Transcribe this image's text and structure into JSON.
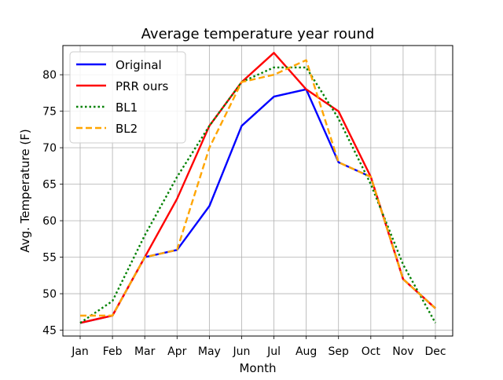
{
  "chart_data": {
    "type": "line",
    "title": "Average temperature year round",
    "xlabel": "Month",
    "ylabel": "Avg. Temperature (F)",
    "categories": [
      "Jan",
      "Feb",
      "Mar",
      "Apr",
      "May",
      "Jun",
      "Jul",
      "Aug",
      "Sep",
      "Oct",
      "Nov",
      "Dec"
    ],
    "ylim": [
      44.2,
      84.0
    ],
    "yticks": [
      45,
      50,
      55,
      60,
      65,
      70,
      75,
      80
    ],
    "grid": true,
    "legend_position": "top-left",
    "series": [
      {
        "name": "Original",
        "color": "#0000ff",
        "style": "solid",
        "values": [
          46,
          47,
          55,
          56,
          62,
          73,
          77,
          78,
          68,
          66,
          52,
          48
        ]
      },
      {
        "name": "PRR ours",
        "color": "#ff0000",
        "style": "solid",
        "values": [
          46,
          47,
          55,
          63,
          73,
          79,
          83,
          78,
          75,
          66,
          52,
          48
        ]
      },
      {
        "name": "BL1",
        "color": "#008000",
        "style": "dotted",
        "values": [
          46,
          49,
          58,
          66,
          73,
          79,
          81,
          81,
          74,
          65,
          54,
          46
        ]
      },
      {
        "name": "BL2",
        "color": "#ffa500",
        "style": "dashed",
        "values": [
          47,
          47,
          55,
          56,
          70,
          79,
          80,
          82,
          68,
          66,
          52,
          48
        ]
      }
    ]
  }
}
